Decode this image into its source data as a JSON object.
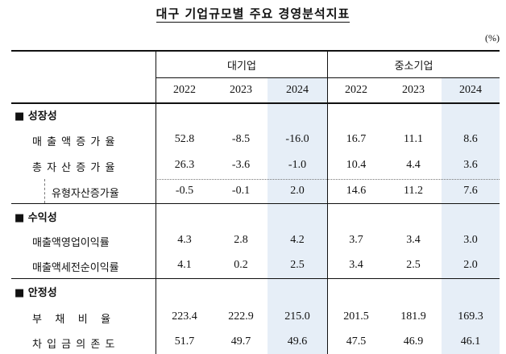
{
  "title": "대구 기업규모별 주요 경영분석지표",
  "unit": "(%)",
  "groups": [
    "대기업",
    "중소기업"
  ],
  "years": [
    "2022",
    "2023",
    "2024",
    "2022",
    "2023",
    "2024"
  ],
  "sections": [
    {
      "name": "■ 성장성"
    },
    {
      "name": "■ 수익성"
    },
    {
      "name": "■ 안정성"
    }
  ],
  "rows": [
    {
      "label": "매 출 액 증 가 율",
      "values": [
        "52.8",
        "-8.5",
        "-16.0",
        "16.7",
        "11.1",
        "8.6"
      ]
    },
    {
      "label": "총 자 산 증 가 율",
      "values": [
        "26.3",
        "-3.6",
        "-1.0",
        "10.4",
        "4.4",
        "3.6"
      ]
    },
    {
      "label": "유형자산증가율",
      "values": [
        "-0.5",
        "-0.1",
        "2.0",
        "14.6",
        "11.2",
        "7.6"
      ]
    },
    {
      "label": "매출액영업이익률",
      "values": [
        "4.3",
        "2.8",
        "4.2",
        "3.7",
        "3.4",
        "3.0"
      ]
    },
    {
      "label": "매출액세전순이익률",
      "values": [
        "4.1",
        "0.2",
        "2.5",
        "3.4",
        "2.5",
        "2.0"
      ]
    },
    {
      "label": "부   채   비   율",
      "values": [
        "223.4",
        "222.9",
        "215.0",
        "201.5",
        "181.9",
        "169.3"
      ]
    },
    {
      "label": "차 입 금 의 존 도",
      "values": [
        "51.7",
        "49.7",
        "49.6",
        "47.5",
        "46.9",
        "46.1"
      ]
    }
  ]
}
